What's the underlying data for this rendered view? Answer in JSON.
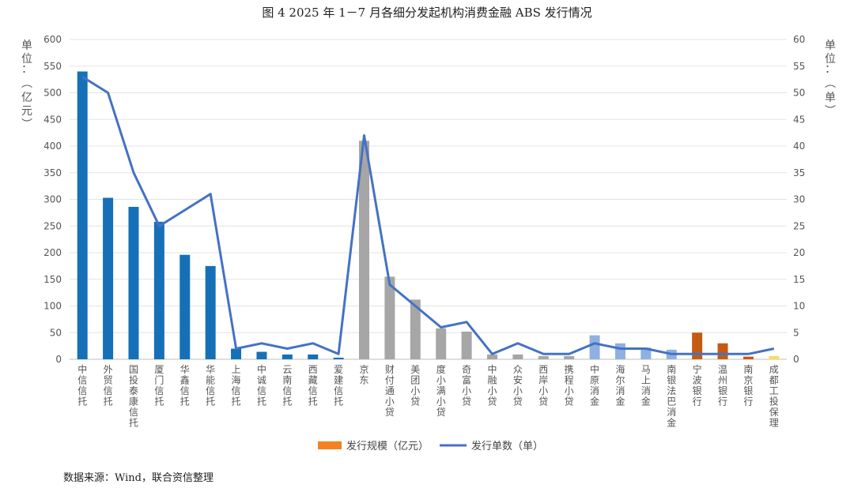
{
  "figure": {
    "title": "图 4 2025 年 1－7 月各细分发起机构消费金融 ABS 发行情况",
    "source": "数据来源：Wind，联合资信整理"
  },
  "chart_data": {
    "type": "bar",
    "categories": [
      "中信信托",
      "外贸信托",
      "国投泰康信托",
      "厦门信托",
      "华鑫信托",
      "华能信托",
      "上海信托",
      "中诚信托",
      "云南信托",
      "西藏信托",
      "爱建信托",
      "京东",
      "财付通小贷",
      "美团小贷",
      "度小满小贷",
      "奇富小贷",
      "中融小贷",
      "众安小贷",
      "西岸小贷",
      "携程小贷",
      "中原消金",
      "海尔消金",
      "马上消金",
      "南银法巴消金",
      "宁波银行",
      "温州银行",
      "南京银行",
      "成都工投保理"
    ],
    "category_groups": [
      "trust",
      "trust",
      "trust",
      "trust",
      "trust",
      "trust",
      "trust",
      "trust",
      "trust",
      "trust",
      "trust",
      "internet",
      "internet",
      "internet",
      "internet",
      "internet",
      "internet",
      "internet",
      "internet",
      "internet",
      "consumer_finance",
      "consumer_finance",
      "consumer_finance",
      "consumer_finance",
      "bank",
      "bank",
      "bank",
      "factoring"
    ],
    "group_colors": {
      "trust": "#1670b8",
      "internet": "#a6a6a6",
      "consumer_finance": "#8fb0e0",
      "bank": "#c55a11",
      "factoring": "#ffd966"
    },
    "series": [
      {
        "name": "发行规模（亿元）",
        "type": "bar",
        "axis": "left",
        "legend_color": "#f58220",
        "values": [
          540,
          303,
          286,
          258,
          196,
          175,
          20,
          14,
          9,
          9,
          3,
          410,
          155,
          112,
          58,
          52,
          9,
          9,
          6,
          6,
          45,
          30,
          22,
          18,
          50,
          30,
          5,
          6
        ]
      },
      {
        "name": "发行单数（单）",
        "type": "line",
        "axis": "right",
        "color": "#4472c4",
        "values": [
          53,
          50,
          35,
          25,
          28,
          31,
          2,
          3,
          2,
          3,
          1,
          42,
          14,
          10,
          6,
          7,
          1,
          3,
          1,
          1,
          3,
          2,
          2,
          1,
          1,
          1,
          1,
          2
        ]
      }
    ],
    "y_left": {
      "label": "单位：（亿元）",
      "min": 0,
      "max": 600,
      "ticks": [
        0,
        50,
        100,
        150,
        200,
        250,
        300,
        350,
        400,
        450,
        500,
        550,
        600
      ]
    },
    "y_right": {
      "label": "单位：（单）",
      "min": 0,
      "max": 60,
      "ticks": [
        0,
        5,
        10,
        15,
        20,
        25,
        30,
        35,
        40,
        45,
        50,
        55,
        60
      ]
    },
    "grid": true,
    "legend": "bottom-center"
  }
}
